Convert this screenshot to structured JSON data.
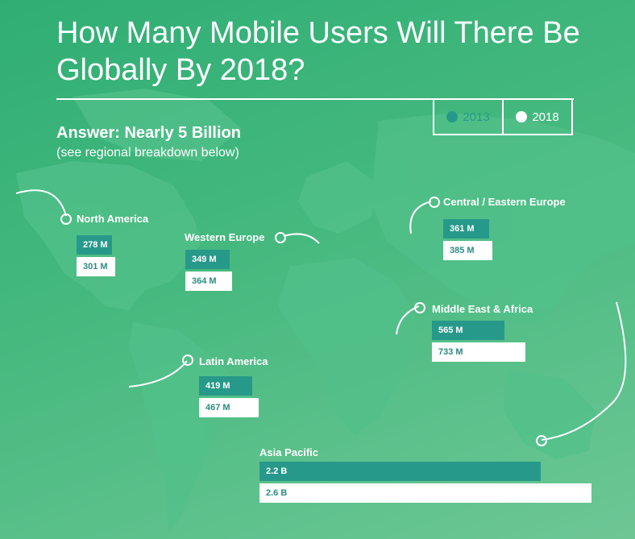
{
  "header": {
    "title": "How Many Mobile Users Will There Be Globally By 2018?",
    "answer": "Answer: Nearly 5 Billion",
    "subtitle": "(see regional breakdown below)"
  },
  "legend": [
    {
      "label": "2013",
      "color": "#27998a"
    },
    {
      "label": "2018",
      "color": "#ffffff"
    }
  ],
  "chart_data": {
    "type": "bar",
    "title": "How Many Mobile Users Will There Be Globally By 2018?",
    "unit": "millions of users",
    "categories": [
      "North America",
      "Western Europe",
      "Central / Eastern Europe",
      "Middle East & Africa",
      "Latin America",
      "Asia Pacific"
    ],
    "series": [
      {
        "name": "2013",
        "values": [
          278,
          349,
          361,
          565,
          419,
          2200
        ],
        "labels": [
          "278 M",
          "349 M",
          "361 M",
          "565 M",
          "419 M",
          "2.2 B"
        ]
      },
      {
        "name": "2018",
        "values": [
          301,
          364,
          385,
          733,
          467,
          2600
        ],
        "labels": [
          "301 M",
          "364 M",
          "385 M",
          "733 M",
          "467 M",
          "2.6 B"
        ]
      }
    ],
    "legend_position": "top-right",
    "grid": false
  },
  "colors": {
    "bar_2013": "#27998a",
    "bar_2018": "#ffffff",
    "background": "#46b97f"
  }
}
